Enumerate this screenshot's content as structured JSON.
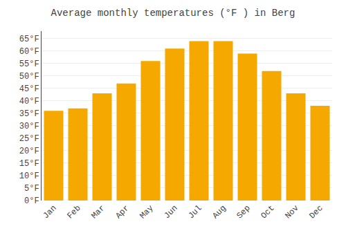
{
  "chart_data": {
    "type": "bar",
    "title": "Average monthly temperatures (°F ) in Berg",
    "categories": [
      "Jan",
      "Feb",
      "Mar",
      "Apr",
      "May",
      "Jun",
      "Jul",
      "Aug",
      "Sep",
      "Oct",
      "Nov",
      "Dec"
    ],
    "values": [
      36,
      37,
      43,
      47,
      56,
      61,
      64,
      64,
      59,
      52,
      43,
      38
    ],
    "color": "#F5A800",
    "ylim": [
      0,
      68
    ],
    "yticks": [
      {
        "value": 0,
        "label": "0°F"
      },
      {
        "value": 5,
        "label": "5°F"
      },
      {
        "value": 10,
        "label": "10°F"
      },
      {
        "value": 15,
        "label": "15°F"
      },
      {
        "value": 20,
        "label": "20°F"
      },
      {
        "value": 25,
        "label": "25°F"
      },
      {
        "value": 30,
        "label": "30°F"
      },
      {
        "value": 35,
        "label": "35°F"
      },
      {
        "value": 40,
        "label": "40°F"
      },
      {
        "value": 45,
        "label": "45°F"
      },
      {
        "value": 50,
        "label": "50°F"
      },
      {
        "value": 55,
        "label": "55°F"
      },
      {
        "value": 60,
        "label": "60°F"
      },
      {
        "value": 65,
        "label": "65°F"
      }
    ],
    "grid": true
  }
}
